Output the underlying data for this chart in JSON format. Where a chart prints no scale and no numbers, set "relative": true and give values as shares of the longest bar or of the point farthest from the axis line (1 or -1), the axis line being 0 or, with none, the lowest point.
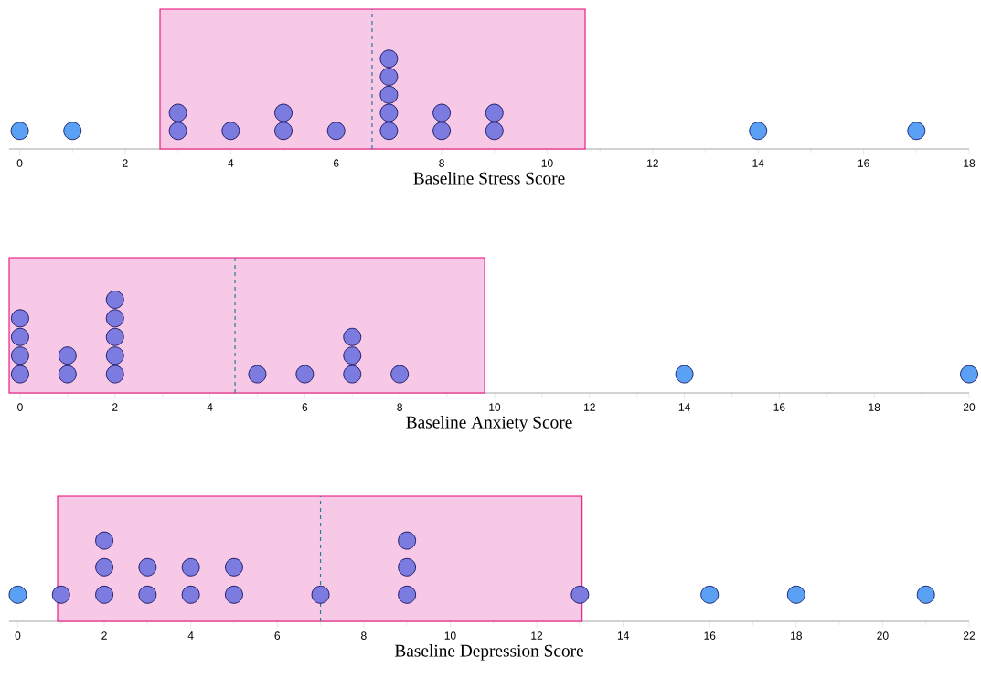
{
  "chart_data": [
    {
      "type": "scatter",
      "xlabel": "Baseline Stress Score",
      "xlim": [
        -0.2,
        18
      ],
      "xticks": [
        0,
        2,
        4,
        6,
        8,
        10,
        12,
        14,
        16,
        18
      ],
      "relative": true,
      "marker": "circle",
      "series": [
        {
          "color": "#5aa0f5",
          "x": [
            0,
            1,
            14,
            17
          ],
          "values": [
            0.2,
            0.2,
            0.2,
            0.2
          ]
        },
        {
          "color": "#7b7be0",
          "x": [
            3,
            3,
            4,
            5,
            5,
            6,
            7,
            7,
            7,
            7,
            7,
            8,
            8,
            9,
            9
          ],
          "values": [
            0.2,
            0.4,
            0.2,
            0.2,
            0.4,
            0.2,
            0.2,
            0.4,
            0.6,
            0.8,
            1,
            0.2,
            0.4,
            0.2,
            0.4
          ]
        }
      ],
      "bands": [
        {
          "axis": "x",
          "from": 2.66,
          "to": 10.72,
          "color": "#f7c9e6"
        }
      ],
      "ref_lines": [
        {
          "axis": "x",
          "value": 6.68,
          "color": "#2a7a9a",
          "line_style": "dashed"
        }
      ]
    },
    {
      "type": "scatter",
      "xlabel": "Baseline Anxiety Score",
      "xlim": [
        -0.23,
        20
      ],
      "xticks": [
        0,
        2,
        4,
        6,
        8,
        10,
        12,
        14,
        16,
        18,
        20
      ],
      "relative": true,
      "marker": "circle",
      "series": [
        {
          "color": "#5aa0f5",
          "x": [
            14,
            20
          ],
          "values": [
            0.2,
            0.2
          ]
        },
        {
          "color": "#7b7be0",
          "x": [
            0,
            0,
            0,
            0,
            1,
            1,
            2,
            2,
            2,
            2,
            2,
            5,
            6,
            7,
            7,
            7,
            8
          ],
          "values": [
            0.2,
            0.4,
            0.6,
            0.8,
            0.2,
            0.4,
            0.2,
            0.4,
            0.6,
            0.8,
            1,
            0.2,
            0.2,
            0.2,
            0.4,
            0.6,
            0.2
          ]
        }
      ],
      "bands": [
        {
          "axis": "x",
          "from": -0.23,
          "to": 9.79,
          "color": "#f7c9e6"
        }
      ],
      "ref_lines": [
        {
          "axis": "x",
          "value": 4.53,
          "color": "#2a7a9a",
          "line_style": "dashed"
        }
      ]
    },
    {
      "type": "scatter",
      "xlabel": "Baseline Depression Score",
      "xlim": [
        -0.2,
        22
      ],
      "xticks": [
        0,
        2,
        4,
        6,
        8,
        10,
        12,
        14,
        16,
        18,
        20,
        22
      ],
      "relative": true,
      "marker": "circle",
      "series": [
        {
          "color": "#5aa0f5",
          "x": [
            0,
            16,
            18,
            21
          ],
          "values": [
            0.33,
            0.33,
            0.33,
            0.33
          ]
        },
        {
          "color": "#7b7be0",
          "x": [
            1,
            2,
            2,
            2,
            3,
            3,
            4,
            4,
            5,
            5,
            7,
            9,
            9,
            9,
            13
          ],
          "values": [
            0.33,
            0.33,
            0.67,
            1,
            0.33,
            0.67,
            0.33,
            0.67,
            0.33,
            0.67,
            0.33,
            0.33,
            0.67,
            1,
            0.33
          ]
        }
      ],
      "bands": [
        {
          "axis": "x",
          "from": 0.92,
          "to": 13.05,
          "color": "#f7c9e6"
        }
      ],
      "ref_lines": [
        {
          "axis": "x",
          "value": 7.0,
          "color": "#2a7a9a",
          "line_style": "dashed"
        }
      ]
    }
  ]
}
